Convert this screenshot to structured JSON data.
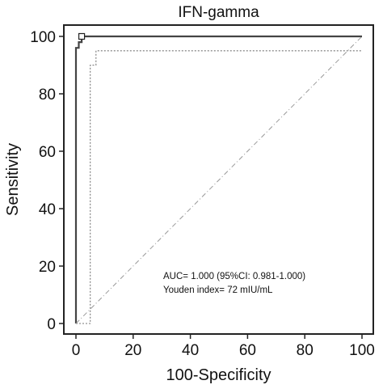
{
  "chart_data": {
    "type": "line",
    "title": "IFN-gamma",
    "xlabel": "100-Specificity",
    "ylabel": "Sensitivity",
    "xlim": [
      0,
      100
    ],
    "ylim": [
      0,
      100
    ],
    "xticks": [
      "0",
      "20",
      "40",
      "60",
      "80",
      "100"
    ],
    "yticks": [
      "0",
      "20",
      "40",
      "60",
      "80",
      "100"
    ],
    "grid": false,
    "series": [
      {
        "style": "solid",
        "color": "#444444",
        "x": [
          0,
          0,
          1,
          1,
          2,
          2,
          100
        ],
        "y": [
          0,
          96,
          96,
          98,
          98,
          100,
          100
        ]
      },
      {
        "style": "dotted",
        "color": "#777777",
        "x": [
          0,
          5,
          5,
          7,
          7,
          100
        ],
        "y": [
          0,
          0,
          90,
          90,
          95,
          95
        ]
      },
      {
        "style": "dash-dot",
        "color": "#999999",
        "x": [
          0,
          100
        ],
        "y": [
          0,
          100
        ]
      }
    ],
    "marker": {
      "x": 2,
      "y": 100,
      "shape": "square"
    },
    "annotations": [
      "AUC= 1.000 (95%CI: 0.981-1.000)",
      "Youden index= 72 mIU/mL"
    ]
  }
}
